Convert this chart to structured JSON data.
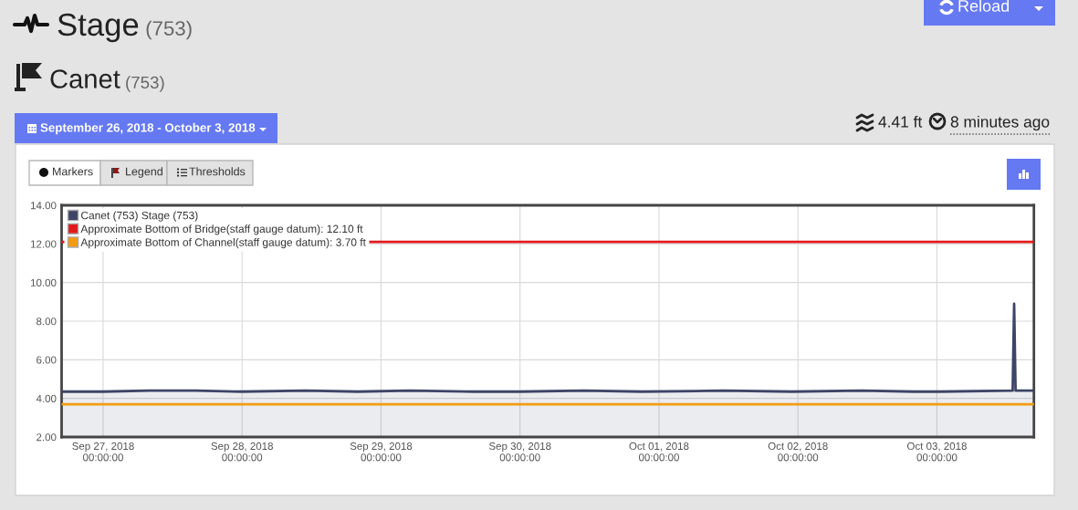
{
  "chart_data": {
    "type": "area",
    "title": "Stage (753)",
    "subtitle": "Canet (753)",
    "annotations": [
      "September 26, 2018 - October 3, 2018",
      "Reload",
      "4.41 ft",
      "8 minutes ago",
      "Markers",
      "Legend",
      "Thresholds"
    ],
    "x": [
      "2018-09-26T16:50",
      "2018-09-27T00:00",
      "2018-09-27T08:00",
      "2018-09-27T16:00",
      "2018-09-28T00:00",
      "2018-09-28T11:00",
      "2018-09-28T20:00",
      "2018-09-29T05:00",
      "2018-09-29T16:00",
      "2018-09-30T00:00",
      "2018-09-30T11:00",
      "2018-09-30T21:00",
      "2018-10-01T11:00",
      "2018-10-01T23:00",
      "2018-10-02T11:00",
      "2018-10-02T20:00",
      "2018-10-03T00:30",
      "2018-10-03T13:05",
      "2018-10-03T13:20",
      "2018-10-03T13:35",
      "2018-10-03T16:45"
    ],
    "series": [
      {
        "name": "Canet (753) Stage (753)",
        "color": "#3d4466",
        "values": [
          4.35,
          4.35,
          4.4,
          4.4,
          4.35,
          4.4,
          4.35,
          4.4,
          4.35,
          4.35,
          4.4,
          4.35,
          4.4,
          4.35,
          4.4,
          4.35,
          4.35,
          4.4,
          8.9,
          4.4,
          4.4
        ]
      }
    ],
    "xlim": [
      "2018-09-26T16:50",
      "2018-10-03T16:45"
    ],
    "xticks": [
      {
        "value": "2018-09-27",
        "label": "Sep 27, 2018\n00:00:00"
      },
      {
        "value": "2018-09-28",
        "label": "Sep 28, 2018\n00:00:00"
      },
      {
        "value": "2018-09-29",
        "label": "Sep 29, 2018\n00:00:00"
      },
      {
        "value": "2018-09-30",
        "label": "Sep 30, 2018\n00:00:00"
      },
      {
        "value": "2018-10-01",
        "label": "Oct 01, 2018\n00:00:00"
      },
      {
        "value": "2018-10-02",
        "label": "Oct 02, 2018\n00:00:00"
      },
      {
        "value": "2018-10-03",
        "label": "Oct 03, 2018\n00:00:00"
      }
    ],
    "ylim": [
      2,
      14
    ],
    "yticks": [
      {
        "value": 2,
        "label": "2.00"
      },
      {
        "value": 4,
        "label": "4.00"
      },
      {
        "value": 6,
        "label": "6.00"
      },
      {
        "value": 8,
        "label": "8.00"
      },
      {
        "value": 10,
        "label": "10.00"
      },
      {
        "value": 12,
        "label": "12.00"
      },
      {
        "value": 14,
        "label": "14.00"
      }
    ],
    "ref_lines": [
      {
        "axis": "y",
        "value": 12.1,
        "label": "Approximate Bottom of Bridge(staff gauge datum): 12.10 ft",
        "color": "#e31a1c"
      },
      {
        "axis": "y",
        "value": 3.7,
        "label": "Approximate Bottom of Channel(staff gauge datum): 3.70 ft",
        "color": "#f39c12"
      }
    ],
    "grid": true,
    "legend": "top left"
  }
}
